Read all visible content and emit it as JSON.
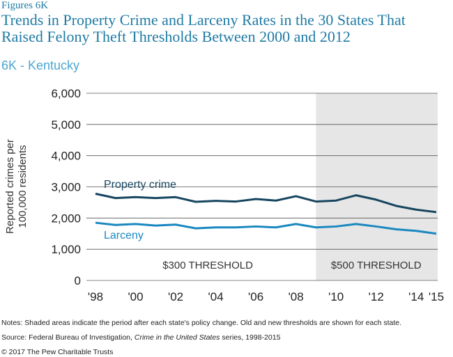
{
  "header": {
    "figure_label": "Figures 6K",
    "title": "Trends in Property Crime and Larceny Rates in the 30 States That Raised Felony Theft Thresholds Between 2000 and 2012",
    "subtitle": "6K - Kentucky"
  },
  "chart_data": {
    "type": "line",
    "title": "6K - Kentucky",
    "ylabel": "Reported crimes per 100,000 residents",
    "ylim": [
      0,
      6000
    ],
    "yticks": [
      "6,000",
      "5,000",
      "4,000",
      "3,000",
      "2,000",
      "1,000",
      "0"
    ],
    "ytick_values": [
      6000,
      5000,
      4000,
      3000,
      2000,
      1000,
      0
    ],
    "xlim": [
      1998,
      2015
    ],
    "xticks": [
      "'98",
      "'00",
      "'02",
      "'04",
      "'06",
      "'08",
      "'10",
      "'12",
      "'14",
      "'15"
    ],
    "xtick_values": [
      1998,
      2000,
      2002,
      2004,
      2006,
      2008,
      2010,
      2012,
      2014,
      2015
    ],
    "x": [
      1998,
      1999,
      2000,
      2001,
      2002,
      2003,
      2004,
      2005,
      2006,
      2007,
      2008,
      2009,
      2010,
      2011,
      2012,
      2013,
      2014,
      2015
    ],
    "series": [
      {
        "name": "Property crime",
        "color": "#16455f",
        "values": [
          2780,
          2640,
          2670,
          2640,
          2670,
          2520,
          2550,
          2530,
          2610,
          2560,
          2700,
          2530,
          2560,
          2730,
          2590,
          2390,
          2270,
          2190
        ]
      },
      {
        "name": "Larceny",
        "color": "#1a88c0",
        "values": [
          1850,
          1780,
          1810,
          1760,
          1790,
          1670,
          1700,
          1700,
          1730,
          1700,
          1810,
          1700,
          1730,
          1810,
          1730,
          1640,
          1590,
          1500
        ]
      }
    ],
    "shaded_region": {
      "from": 2009,
      "to": 2015,
      "color": "#e6e6e6"
    },
    "threshold_labels": [
      {
        "text": "$300 THRESHOLD",
        "x": 2003.6
      },
      {
        "text": "$500 THRESHOLD",
        "x": 2012.0
      }
    ]
  },
  "notes": {
    "note": "Notes: Shaded areas indicate the period after each state's policy change. Old and new thresholds are shown for each state.",
    "source_prefix": "Source: Federal Bureau of Investigation, ",
    "source_title": "Crime in the United States",
    "source_suffix": " series, 1998-2015",
    "copyright": "© 2017 The Pew Charitable Trusts"
  }
}
